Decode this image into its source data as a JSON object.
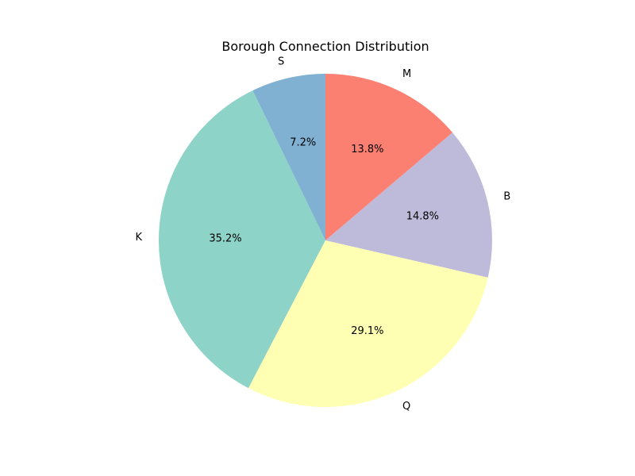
{
  "chart_data": {
    "type": "pie",
    "title": "Borough Connection Distribution",
    "start_angle_deg": 90,
    "direction": "counterclockwise",
    "slices": [
      {
        "label": "S",
        "value": 7.2,
        "pct_label": "7.2%",
        "color": "#80b1d3"
      },
      {
        "label": "K",
        "value": 35.2,
        "pct_label": "35.2%",
        "color": "#8dd3c7"
      },
      {
        "label": "Q",
        "value": 29.1,
        "pct_label": "29.1%",
        "color": "#ffffb3"
      },
      {
        "label": "B",
        "value": 14.8,
        "pct_label": "14.8%",
        "color": "#bebada"
      },
      {
        "label": "M",
        "value": 13.8,
        "pct_label": "13.8%",
        "color": "#fb8072"
      }
    ]
  }
}
